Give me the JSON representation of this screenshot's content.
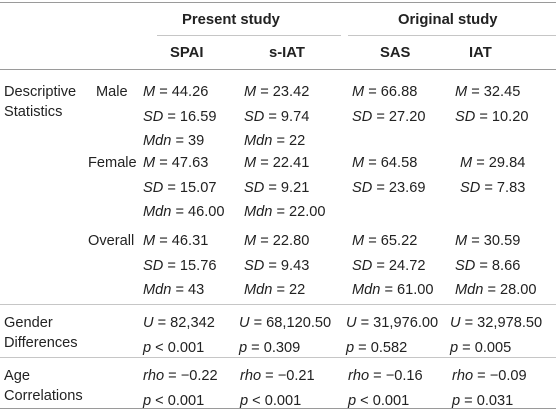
{
  "header": {
    "group_present": "Present study",
    "group_original": "Original study",
    "col_spai": "SPAI",
    "col_siat": "s-IAT",
    "col_sas": "SAS",
    "col_iat": "IAT"
  },
  "descriptive": {
    "label_line1": "Descriptive",
    "label_line2": "Statistics",
    "male": {
      "label": "Male",
      "spai": [
        [
          "M",
          " = 44.26"
        ],
        [
          "SD",
          " = 16.59"
        ],
        [
          "Mdn",
          " = 39"
        ]
      ],
      "siat": [
        [
          "M",
          " = 23.42"
        ],
        [
          "SD",
          " = 9.74"
        ],
        [
          "Mdn",
          " = 22"
        ]
      ],
      "sas": [
        [
          "M",
          " = 66.88"
        ],
        [
          "SD",
          " = 27.20"
        ]
      ],
      "iat": [
        [
          "M",
          " = 32.45"
        ],
        [
          "SD",
          " = 10.20"
        ]
      ]
    },
    "female": {
      "label": "Female",
      "spai": [
        [
          "M",
          " = 47.63"
        ],
        [
          "SD",
          " = 15.07"
        ],
        [
          "Mdn",
          " = 46.00"
        ]
      ],
      "siat": [
        [
          "M",
          " = 22.41"
        ],
        [
          "SD",
          " = 9.21"
        ],
        [
          "Mdn",
          " = 22.00"
        ]
      ],
      "sas": [
        [
          "M",
          " = 64.58"
        ],
        [
          "SD",
          " = 23.69"
        ]
      ],
      "iat": [
        [
          "M",
          " = 29.84"
        ],
        [
          "SD",
          " = 7.83"
        ]
      ]
    },
    "overall": {
      "label": "Overall",
      "spai": [
        [
          "M",
          " = 46.31"
        ],
        [
          "SD",
          " = 15.76"
        ],
        [
          "Mdn",
          " = 43"
        ]
      ],
      "siat": [
        [
          "M",
          " = 22.80"
        ],
        [
          "SD",
          " = 9.43"
        ],
        [
          "Mdn",
          " = 22"
        ]
      ],
      "sas": [
        [
          "M",
          " = 65.22"
        ],
        [
          "SD",
          " = 24.72"
        ],
        [
          "Mdn",
          " = 61.00"
        ]
      ],
      "iat": [
        [
          "M",
          " = 30.59"
        ],
        [
          "SD",
          " = 8.66"
        ],
        [
          "Mdn",
          " = 28.00"
        ]
      ]
    }
  },
  "gender": {
    "label_line1": "Gender",
    "label_line2": "Differences",
    "spai": [
      [
        "U",
        " = 82,342"
      ],
      [
        "p",
        " < 0.001"
      ]
    ],
    "siat": [
      [
        "U",
        " = 68,120.50"
      ],
      [
        "p",
        " = 0.309"
      ]
    ],
    "sas": [
      [
        "U",
        " = 31,976.00"
      ],
      [
        "p",
        " = 0.582"
      ]
    ],
    "iat": [
      [
        "U",
        " = 32,978.50"
      ],
      [
        "p",
        " = 0.005"
      ]
    ]
  },
  "age": {
    "label_line1": "Age",
    "label_line2": "Correlations",
    "spai": [
      [
        "rho",
        " = −0.22"
      ],
      [
        "p",
        " < 0.001"
      ]
    ],
    "siat": [
      [
        "rho",
        " = −0.21"
      ],
      [
        "p",
        " < 0.001"
      ]
    ],
    "sas": [
      [
        "rho",
        " = −0.16"
      ],
      [
        "p",
        " < 0.001"
      ]
    ],
    "iat": [
      [
        "rho",
        " = −0.09"
      ],
      [
        "p",
        " = 0.031"
      ]
    ]
  }
}
